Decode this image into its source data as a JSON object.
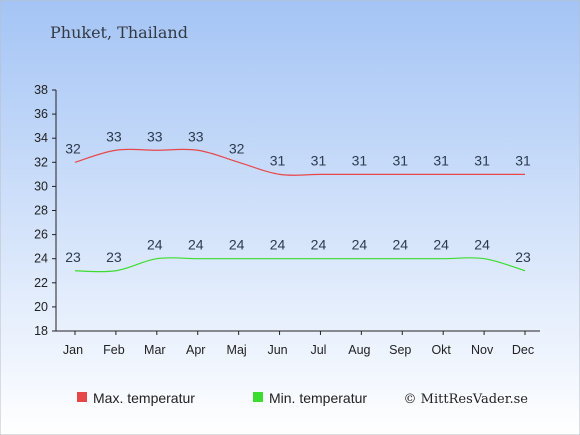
{
  "chart_data": {
    "type": "line",
    "title": "Phuket, Thailand",
    "categories": [
      "Jan",
      "Feb",
      "Mar",
      "Apr",
      "Maj",
      "Jun",
      "Jul",
      "Aug",
      "Sep",
      "Okt",
      "Nov",
      "Dec"
    ],
    "series": [
      {
        "name": "Max. temperatur",
        "color": "#e8474a",
        "values": [
          32,
          33,
          33,
          33,
          32,
          31,
          31,
          31,
          31,
          31,
          31,
          31
        ]
      },
      {
        "name": "Min. temperatur",
        "color": "#3bdc2e",
        "values": [
          23,
          23,
          24,
          24,
          24,
          24,
          24,
          24,
          24,
          24,
          24,
          23
        ]
      }
    ],
    "yticks": [
      18,
      20,
      22,
      24,
      26,
      28,
      30,
      32,
      34,
      36,
      38
    ],
    "ylim": [
      18,
      38
    ],
    "xlabel": "",
    "ylabel": "",
    "grid": false,
    "legend_position": "bottom-left"
  },
  "credit": "© MittResVader.se",
  "colors": {
    "background_top": "#a4c4f5",
    "background_bottom": "#ffffff",
    "axis": "#222222"
  }
}
